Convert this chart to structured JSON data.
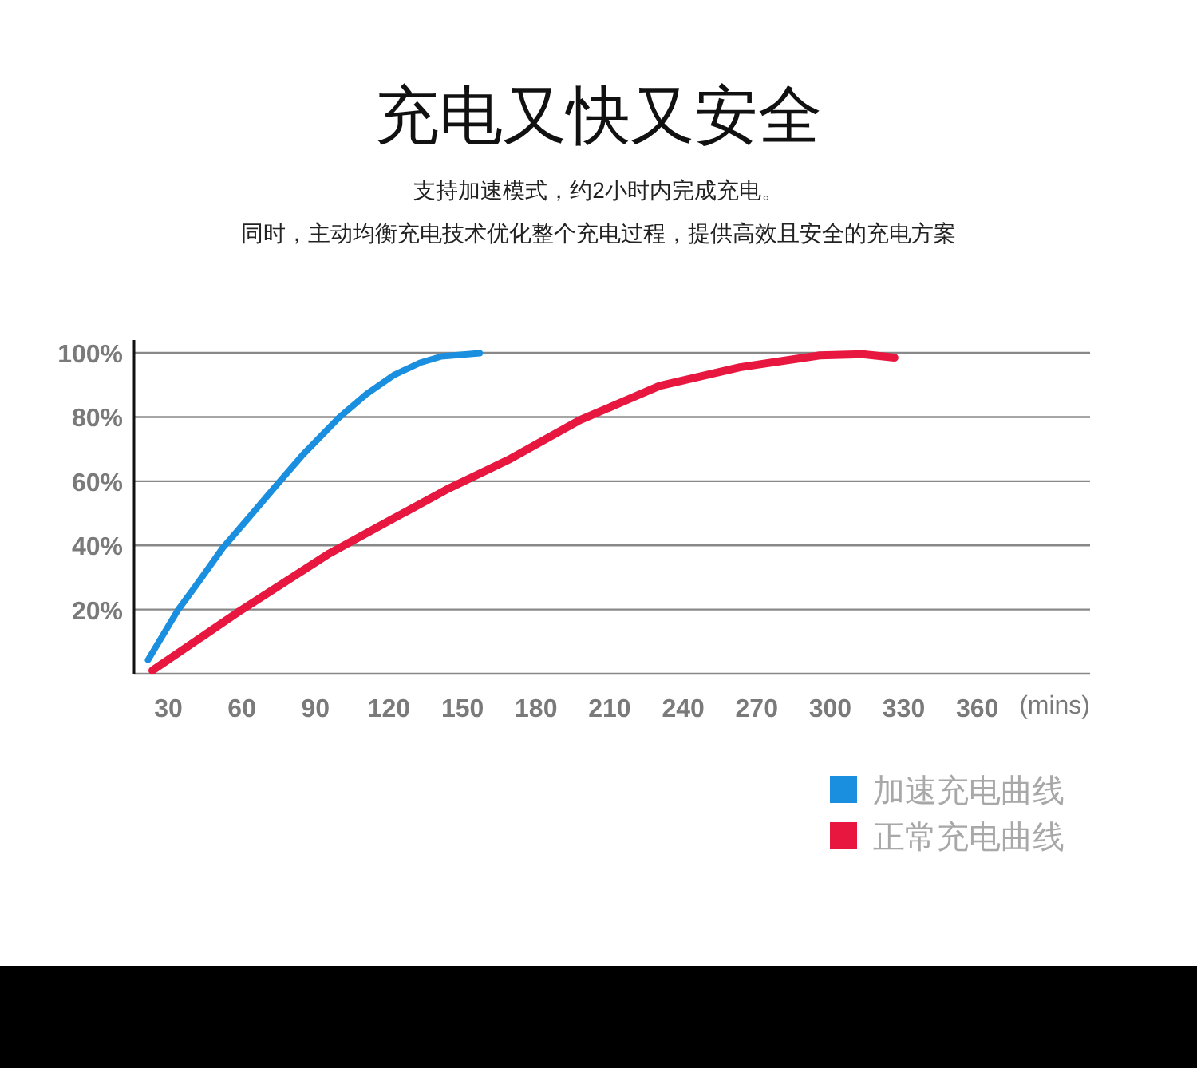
{
  "chart_data": {
    "type": "line",
    "title": "充电又快又安全",
    "subtitle": "支持加速模式，约2小时内完成充电。",
    "annotations": [
      "同时，主动均衡充电技术优化整个充电过程，提供高效且安全的充电方案"
    ],
    "xlabel": "(mins)",
    "xlim": [
      16,
      406
    ],
    "xticks": [
      30,
      60,
      90,
      120,
      150,
      180,
      210,
      240,
      270,
      300,
      330,
      360
    ],
    "ylim": [
      0,
      103
    ],
    "yticks": [
      {
        "value": 0,
        "label": null
      },
      {
        "value": 20,
        "label": "20%"
      },
      {
        "value": 40,
        "label": "40%"
      },
      {
        "value": 60,
        "label": "60%"
      },
      {
        "value": 80,
        "label": "80%"
      },
      {
        "value": 100,
        "label": "100%"
      }
    ],
    "grid": "y",
    "legend": "bottom right",
    "marker": "none",
    "line_style": "solid",
    "series": [
      {
        "name": "加速充电曲线",
        "color": "#1a8fe0",
        "x": [
          21.7,
          33.7,
          41.3,
          52.2,
          63,
          72.9,
          84.8,
          99.6,
          110.9,
          121.8,
          132.6,
          141.4,
          157
        ],
        "values": [
          4.3,
          19.6,
          27.5,
          39.2,
          48.8,
          57.7,
          68.2,
          79.8,
          87.2,
          93,
          96.9,
          98.9,
          99.9
        ]
      },
      {
        "name": "正常充电曲线",
        "color": "#e8173f",
        "x": [
          23.5,
          58.7,
          95.7,
          119.5,
          143.5,
          169.6,
          197.8,
          230.4,
          263.1,
          295.7,
          313.2,
          326.2
        ],
        "values": [
          1,
          19.3,
          37.5,
          47.4,
          57.4,
          67,
          79,
          89.7,
          95.5,
          99.2,
          99.6,
          98.5
        ]
      }
    ]
  }
}
